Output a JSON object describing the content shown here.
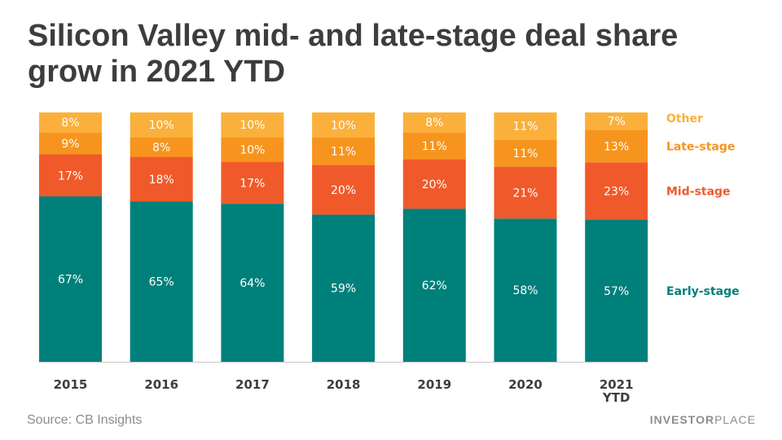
{
  "title": "Silicon Valley mid- and late-stage deal share grow in 2021 YTD",
  "source": "Source: CB Insights",
  "brand": {
    "bold": "INVESTOR",
    "light": "PLACE"
  },
  "colors": {
    "early": "#00807b",
    "mid": "#f05a2a",
    "late": "#f7941d",
    "other": "#fbb03b",
    "axis_text": "#3d3d3f",
    "baseline": "#c8c8c8"
  },
  "chart_data": {
    "type": "bar",
    "stacked": true,
    "title": "Silicon Valley mid- and late-stage deal share grow in 2021 YTD",
    "xlabel": "",
    "ylabel": "",
    "ylim": [
      0,
      100
    ],
    "categories": [
      "2015",
      "2016",
      "2017",
      "2018",
      "2019",
      "2020",
      "2021 YTD"
    ],
    "series": [
      {
        "name": "Early-stage",
        "key": "early",
        "values": [
          67,
          65,
          64,
          59,
          62,
          58,
          57
        ]
      },
      {
        "name": "Mid-stage",
        "key": "mid",
        "values": [
          17,
          18,
          17,
          20,
          20,
          21,
          23
        ]
      },
      {
        "name": "Late-stage",
        "key": "late",
        "values": [
          9,
          8,
          10,
          11,
          11,
          11,
          13
        ]
      },
      {
        "name": "Other",
        "key": "other",
        "values": [
          8,
          10,
          10,
          10,
          8,
          11,
          7
        ]
      }
    ],
    "value_suffix": "%",
    "legend": "right"
  }
}
